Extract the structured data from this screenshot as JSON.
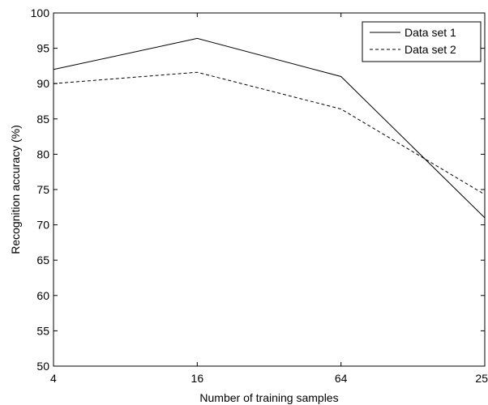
{
  "chart_data": {
    "type": "line",
    "title": "",
    "xlabel": "Number of training samples",
    "ylabel": "Recognition accuracy (%)",
    "categories": [
      "4",
      "16",
      "64",
      "25"
    ],
    "xlim": [
      0,
      3
    ],
    "ylim": [
      50,
      100
    ],
    "yticks": [
      50,
      55,
      60,
      65,
      70,
      75,
      80,
      85,
      90,
      95,
      100
    ],
    "grid": false,
    "legend_position": "top-right",
    "series": [
      {
        "name": "Data set 1",
        "style": "solid",
        "color": "#000000",
        "values": [
          92.0,
          96.4,
          91.0,
          71.0
        ]
      },
      {
        "name": "Data set 2",
        "style": "dashed",
        "color": "#000000",
        "values": [
          90.0,
          91.6,
          86.4,
          74.3
        ]
      }
    ]
  }
}
